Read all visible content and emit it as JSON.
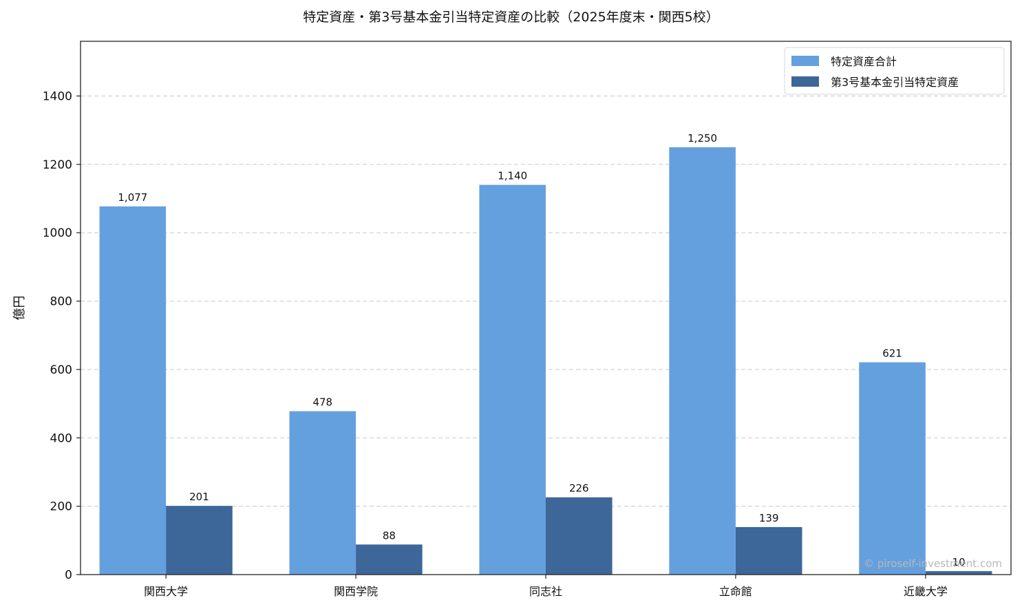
{
  "chart_data": {
    "type": "bar",
    "title": "特定資産・第3号基本金引当特定資産の比較（2025年度末・関西5校）",
    "xlabel": "",
    "ylabel": "億円",
    "ylim": [
      0,
      1560
    ],
    "yticks": [
      0,
      200,
      400,
      600,
      800,
      1000,
      1200,
      1400
    ],
    "grid": "y-dashed",
    "legend_position": "top-right",
    "categories": [
      "関西大学",
      "関西学院",
      "同志社",
      "立命館",
      "近畿大学"
    ],
    "series": [
      {
        "name": "特定資産合計",
        "color": "#64a0de",
        "values": [
          1077,
          478,
          1140,
          1250,
          621
        ],
        "labels": [
          "1,077",
          "478",
          "1,140",
          "1,250",
          "621"
        ]
      },
      {
        "name": "第3号基本金引当特定資産",
        "color": "#3d6699",
        "values": [
          201,
          88,
          226,
          139,
          10
        ],
        "labels": [
          "201",
          "88",
          "226",
          "139",
          "10"
        ]
      }
    ],
    "watermark": "© piroself-investment.com"
  }
}
